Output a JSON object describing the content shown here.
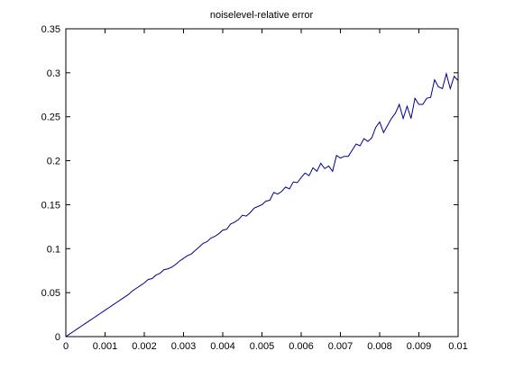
{
  "colors": {
    "series": "#00008b",
    "axes": "#000000",
    "background": "#ffffff"
  },
  "chart_data": {
    "type": "line",
    "title": "noiselevel-relative error",
    "xlabel": "",
    "ylabel": "",
    "xlim": [
      0,
      0.01
    ],
    "ylim": [
      0,
      0.35
    ],
    "grid": false,
    "xticks": [
      0,
      0.001,
      0.002,
      0.003,
      0.004,
      0.005,
      0.006,
      0.007,
      0.008,
      0.009,
      0.01
    ],
    "xtick_labels": [
      "0",
      "0.001",
      "0.002",
      "0.003",
      "0.004",
      "0.005",
      "0.006",
      "0.007",
      "0.008",
      "0.009",
      "0.01"
    ],
    "yticks": [
      0,
      0.05,
      0.1,
      0.15,
      0.2,
      0.25,
      0.3,
      0.35
    ],
    "ytick_labels": [
      "0",
      "0.05",
      "0.1",
      "0.15",
      "0.2",
      "0.25",
      "0.3",
      "0.35"
    ],
    "series": [
      {
        "x": [
          0,
          0.0001,
          0.0002,
          0.0003,
          0.0004,
          0.0005,
          0.0006,
          0.0007,
          0.0008,
          0.0009,
          0.001,
          0.0011,
          0.0012,
          0.0013,
          0.0014,
          0.0015,
          0.0016,
          0.0017,
          0.0018,
          0.0019,
          0.002,
          0.0021,
          0.0022,
          0.0023,
          0.0024,
          0.0025,
          0.0026,
          0.0027,
          0.0028,
          0.0029,
          0.003,
          0.0031,
          0.0032,
          0.0033,
          0.0034,
          0.0035,
          0.0036,
          0.0037,
          0.0038,
          0.0039,
          0.004,
          0.0041,
          0.0042,
          0.0043,
          0.0044,
          0.0045,
          0.0046,
          0.0047,
          0.0048,
          0.0049,
          0.005,
          0.0051,
          0.0052,
          0.0053,
          0.0054,
          0.0055,
          0.0056,
          0.0057,
          0.0058,
          0.0059,
          0.006,
          0.0061,
          0.0062,
          0.0063,
          0.0064,
          0.0065,
          0.0066,
          0.0067,
          0.0068,
          0.0069,
          0.007,
          0.0071,
          0.0072,
          0.0073,
          0.0074,
          0.0075,
          0.0076,
          0.0077,
          0.0078,
          0.0079,
          0.008,
          0.0081,
          0.0082,
          0.0083,
          0.0084,
          0.0085,
          0.0086,
          0.0087,
          0.0088,
          0.0089,
          0.009,
          0.0091,
          0.0092,
          0.0093,
          0.0094,
          0.0095,
          0.0096,
          0.0097,
          0.0098,
          0.0099,
          0.01
        ],
        "y": [
          0,
          0.003,
          0.006,
          0.009,
          0.012,
          0.015,
          0.018,
          0.021,
          0.024,
          0.027,
          0.03,
          0.033,
          0.036,
          0.039,
          0.042,
          0.045,
          0.048,
          0.052,
          0.055,
          0.058,
          0.061,
          0.065,
          0.066,
          0.07,
          0.072,
          0.076,
          0.077,
          0.079,
          0.082,
          0.086,
          0.089,
          0.092,
          0.094,
          0.098,
          0.102,
          0.106,
          0.108,
          0.112,
          0.114,
          0.117,
          0.121,
          0.122,
          0.128,
          0.13,
          0.133,
          0.138,
          0.137,
          0.141,
          0.146,
          0.148,
          0.15,
          0.154,
          0.155,
          0.164,
          0.162,
          0.165,
          0.17,
          0.168,
          0.176,
          0.175,
          0.181,
          0.186,
          0.183,
          0.192,
          0.188,
          0.197,
          0.191,
          0.194,
          0.188,
          0.206,
          0.203,
          0.205,
          0.205,
          0.212,
          0.219,
          0.217,
          0.225,
          0.222,
          0.226,
          0.238,
          0.244,
          0.232,
          0.24,
          0.248,
          0.254,
          0.264,
          0.248,
          0.262,
          0.248,
          0.271,
          0.264,
          0.264,
          0.271,
          0.272,
          0.292,
          0.284,
          0.282,
          0.299,
          0.282,
          0.296,
          0.291
        ]
      }
    ]
  }
}
